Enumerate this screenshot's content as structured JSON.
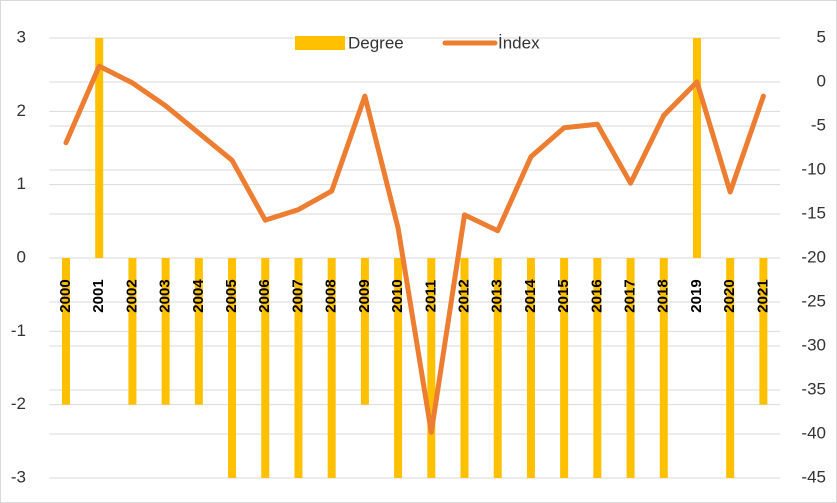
{
  "chart_data": {
    "type": "bar",
    "categories": [
      "2000",
      "2001",
      "2002",
      "2003",
      "2004",
      "2005",
      "2006",
      "2007",
      "2008",
      "2009",
      "2010",
      "2011",
      "2012",
      "2013",
      "2014",
      "2015",
      "2016",
      "2017",
      "2018",
      "2019",
      "2020",
      "2021"
    ],
    "series": [
      {
        "name": "Degree",
        "type": "bar",
        "color": "#ffc000",
        "values": [
          -2,
          3,
          -2,
          -2,
          -2,
          -3,
          -3,
          -3,
          -3,
          -2,
          -3,
          -3,
          -3,
          -3,
          -3,
          -3,
          -3,
          -3,
          -3,
          3,
          -3,
          -2
        ]
      },
      {
        "name": "İndex",
        "type": "line",
        "axis": "y2",
        "color": "#ed7d31",
        "values": [
          -6.9,
          1.8,
          -0.1,
          -2.7,
          -5.8,
          -8.9,
          -15.7,
          -14.5,
          -12.4,
          -1.6,
          -16.6,
          -39.8,
          -15.1,
          -16.9,
          -8.5,
          -5.2,
          -4.8,
          -11.5,
          -3.8,
          0,
          -12.5,
          -1.6
        ]
      }
    ],
    "ylim": [
      -3,
      3
    ],
    "yticks": [
      -3,
      -2,
      -1,
      0,
      1,
      2,
      3
    ],
    "y2lim": [
      -45,
      5
    ],
    "y2ticks": [
      -45,
      -40,
      -35,
      -30,
      -25,
      -20,
      -15,
      -10,
      -5,
      0,
      5
    ],
    "grid": true,
    "legend": "top"
  }
}
